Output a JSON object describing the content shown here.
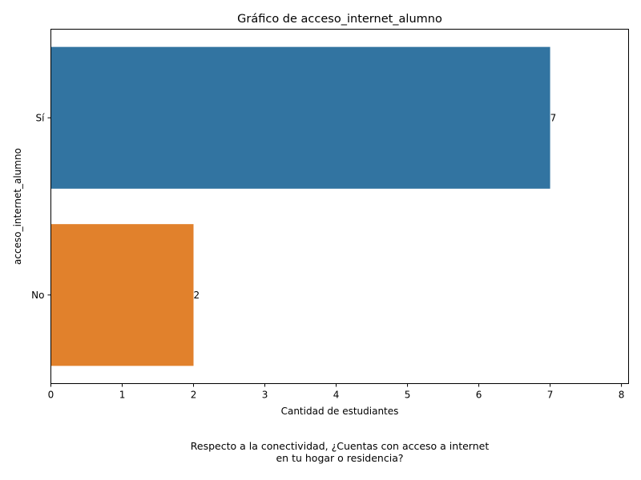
{
  "chart_data": {
    "type": "bar",
    "orientation": "horizontal",
    "title": "Gráfico de acceso_internet_alumno",
    "xlabel": "Cantidad de estudiantes",
    "ylabel": "acceso_internet_alumno",
    "categories": [
      "Sí",
      "No"
    ],
    "values": [
      7,
      2
    ],
    "data_labels": [
      "7",
      "2"
    ],
    "xlim": [
      0,
      8.1
    ],
    "xticks": [
      0,
      1,
      2,
      3,
      4,
      5,
      6,
      7,
      8
    ],
    "xtick_labels": [
      "0",
      "1",
      "2",
      "3",
      "4",
      "5",
      "6",
      "7",
      "8"
    ],
    "grid": false,
    "legend": "none",
    "bar_colors": [
      "#3274a1",
      "#e1812c"
    ]
  },
  "caption": {
    "line1": "Respecto a la conectividad, ¿Cuentas con acceso a internet",
    "line2": "en tu hogar o residencia?"
  }
}
